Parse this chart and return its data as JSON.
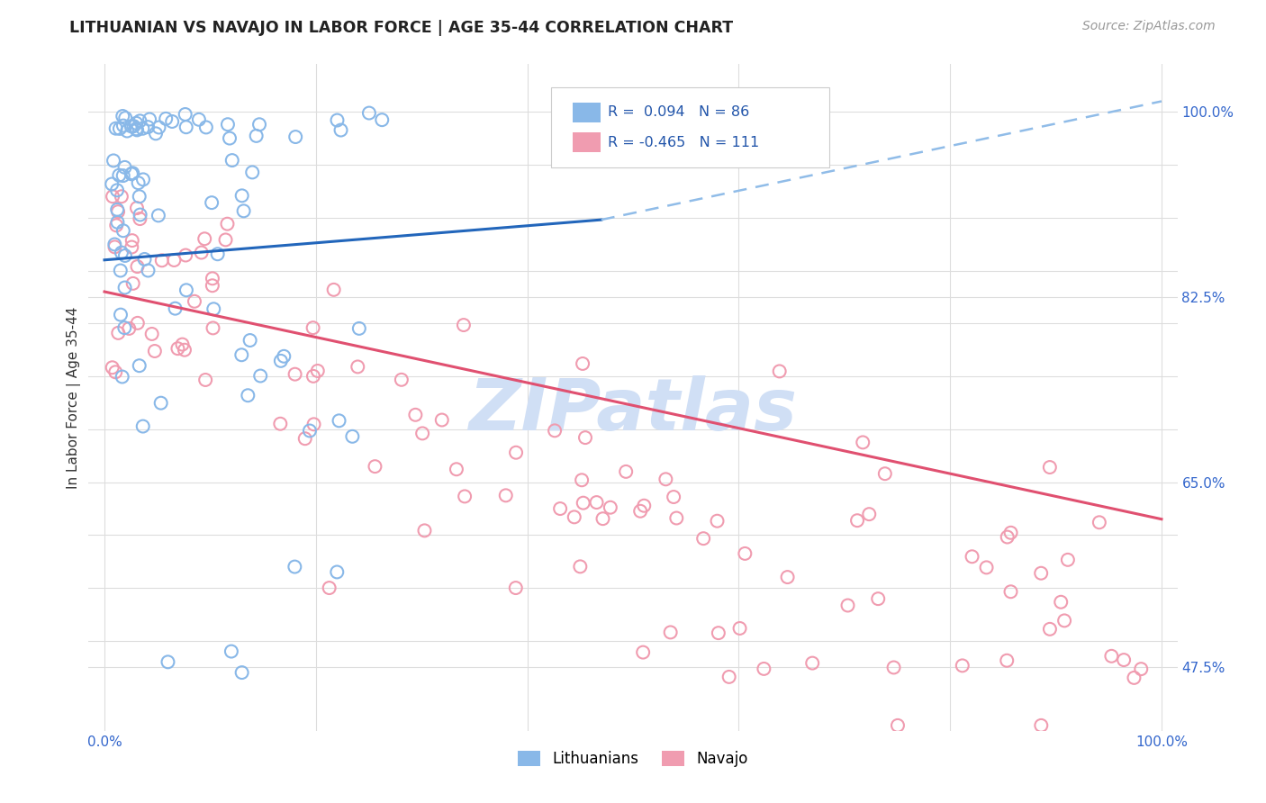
{
  "title": "LITHUANIAN VS NAVAJO IN LABOR FORCE | AGE 35-44 CORRELATION CHART",
  "source": "Source: ZipAtlas.com",
  "ylabel": "In Labor Force | Age 35-44",
  "lit_R": 0.094,
  "lit_N": 86,
  "nav_R": -0.465,
  "nav_N": 111,
  "lit_color": "#89b8e8",
  "nav_color": "#f09cb0",
  "lit_line_color": "#2266bb",
  "nav_line_color": "#e05070",
  "dash_line_color": "#90bce8",
  "watermark_color": "#c8d8f0",
  "background_color": "#ffffff",
  "xlim": [
    -0.015,
    1.015
  ],
  "ylim": [
    0.415,
    1.045
  ],
  "y_ticks": [
    0.475,
    0.65,
    0.825,
    1.0
  ],
  "y_tick_labels": [
    "47.5%",
    "65.0%",
    "82.5%",
    "100.0%"
  ],
  "y_grid_ticks": [
    0.475,
    0.5,
    0.55,
    0.6,
    0.65,
    0.7,
    0.75,
    0.8,
    0.825,
    0.85,
    0.9,
    0.95,
    1.0
  ],
  "x_ticks": [
    0.0,
    1.0
  ],
  "x_tick_labels": [
    "0.0%",
    "100.0%"
  ],
  "lit_line_x": [
    0.0,
    0.47
  ],
  "lit_line_y": [
    0.86,
    0.898
  ],
  "dash_line_x": [
    0.47,
    1.0
  ],
  "dash_line_y": [
    0.898,
    1.01
  ],
  "nav_line_x": [
    0.0,
    1.0
  ],
  "nav_line_y": [
    0.83,
    0.615
  ],
  "legend_R_text1": "R =  0.094   N = 86",
  "legend_R_text2": "R = -0.465   N = 111",
  "watermark_text": "ZIPatlas"
}
